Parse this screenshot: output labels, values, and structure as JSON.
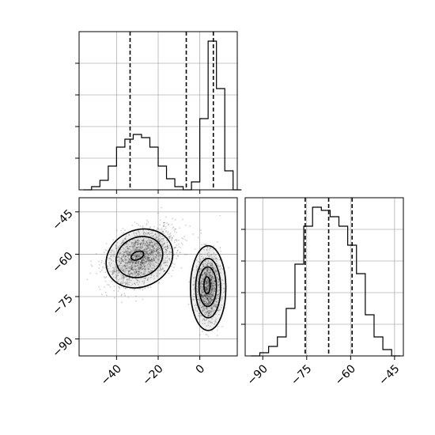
{
  "chart_data": [
    {
      "id": "hist_param1",
      "type": "histogram",
      "xlim": [
        -58,
        18
      ],
      "bins": [
        {
          "x0": -56,
          "x1": -52,
          "count": 0
        },
        {
          "x0": -52,
          "x1": -48,
          "count": 2
        },
        {
          "x0": -48,
          "x1": -44,
          "count": 6
        },
        {
          "x0": -44,
          "x1": -40,
          "count": 15
        },
        {
          "x0": -40,
          "x1": -36,
          "count": 27
        },
        {
          "x0": -36,
          "x1": -32,
          "count": 32
        },
        {
          "x0": -32,
          "x1": -28,
          "count": 35
        },
        {
          "x0": -28,
          "x1": -24,
          "count": 33
        },
        {
          "x0": -24,
          "x1": -20,
          "count": 27
        },
        {
          "x0": -20,
          "x1": -16,
          "count": 15
        },
        {
          "x0": -16,
          "x1": -12,
          "count": 7
        },
        {
          "x0": -12,
          "x1": -8,
          "count": 2
        },
        {
          "x0": -8,
          "x1": -4,
          "count": 0
        },
        {
          "x0": -4,
          "x1": 0,
          "count": 5
        },
        {
          "x0": 0,
          "x1": 4,
          "count": 45
        },
        {
          "x0": 4,
          "x1": 8,
          "count": 94
        },
        {
          "x0": 8,
          "x1": 12,
          "count": 64
        },
        {
          "x0": 12,
          "x1": 16,
          "count": 12
        },
        {
          "x0": 16,
          "x1": 20,
          "count": 0
        }
      ],
      "ymax": 100,
      "yticks": [
        20,
        40,
        60,
        80
      ],
      "quantiles": [
        -33.5,
        -6.5,
        6.5
      ],
      "grid": true
    },
    {
      "id": "scatter_2d",
      "type": "scatter",
      "xlim": [
        -58,
        18
      ],
      "ylim": [
        -96,
        -40
      ],
      "xticks": [
        -40,
        -20,
        0
      ],
      "yticks": [
        -45,
        -60,
        -75,
        -90
      ],
      "xtick_labels": [
        "−40",
        "−20",
        "0"
      ],
      "ytick_labels": [
        "−45",
        "−60",
        "−75",
        "−90"
      ],
      "clusters": [
        {
          "cx": -28,
          "cy": -61,
          "sx": 8,
          "sy": 5,
          "rho": 0.45,
          "n": 1700
        },
        {
          "cx": 4,
          "cy": -72,
          "sx": 3,
          "sy": 6,
          "rho": 0.0,
          "n": 1200
        }
      ],
      "contours": [
        {
          "cx": -30,
          "cy": -60.5,
          "rx": 3.2,
          "ry": 1.4,
          "angle": -25
        },
        {
          "cx": -29,
          "cy": -61,
          "rx": 11.5,
          "ry": 7.0,
          "angle": -25
        },
        {
          "cx": -29,
          "cy": -61.5,
          "rx": 16.5,
          "ry": 10.0,
          "angle": -25
        },
        {
          "cx": 3.5,
          "cy": -71,
          "rx": 1.5,
          "ry": 3.0,
          "angle": 0
        },
        {
          "cx": 3.8,
          "cy": -71.5,
          "rx": 4.2,
          "ry": 7.0,
          "angle": 0
        },
        {
          "cx": 4.0,
          "cy": -72,
          "rx": 6.0,
          "ry": 10.5,
          "angle": 0
        },
        {
          "cx": 4.0,
          "cy": -72,
          "rx": 8.5,
          "ry": 15.0,
          "angle": 0
        }
      ],
      "grid": true
    },
    {
      "id": "hist_param2",
      "type": "histogram",
      "xlim": [
        -96,
        -42
      ],
      "xticks": [
        -90,
        -75,
        -60,
        -45
      ],
      "xtick_labels": [
        "−90",
        "−75",
        "−60",
        "−45"
      ],
      "bins": [
        {
          "x0": -94,
          "x1": -91,
          "count": 0
        },
        {
          "x0": -91,
          "x1": -88,
          "count": 1
        },
        {
          "x0": -88,
          "x1": -85,
          "count": 3
        },
        {
          "x0": -85,
          "x1": -82,
          "count": 6
        },
        {
          "x0": -82,
          "x1": -79,
          "count": 15
        },
        {
          "x0": -79,
          "x1": -76,
          "count": 29
        },
        {
          "x0": -76,
          "x1": -73,
          "count": 41
        },
        {
          "x0": -73,
          "x1": -70,
          "count": 47
        },
        {
          "x0": -70,
          "x1": -67,
          "count": 46
        },
        {
          "x0": -67,
          "x1": -64,
          "count": 44
        },
        {
          "x0": -64,
          "x1": -61,
          "count": 41
        },
        {
          "x0": -61,
          "x1": -58,
          "count": 35
        },
        {
          "x0": -58,
          "x1": -55,
          "count": 26
        },
        {
          "x0": -55,
          "x1": -52,
          "count": 13
        },
        {
          "x0": -52,
          "x1": -49,
          "count": 6
        },
        {
          "x0": -49,
          "x1": -46,
          "count": 2
        },
        {
          "x0": -46,
          "x1": -43,
          "count": 0
        }
      ],
      "ymax": 50,
      "yticks": [
        10,
        20,
        30,
        40
      ],
      "quantiles": [
        -75.5,
        -67.5,
        -59.5
      ],
      "grid": true
    }
  ]
}
